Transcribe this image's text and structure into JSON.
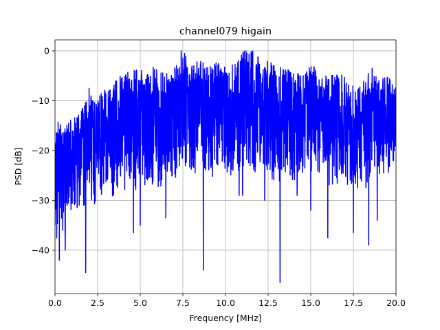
{
  "chart_data": {
    "type": "line",
    "title": "channel079 higain",
    "xlabel": "Frequency [MHz]",
    "ylabel": "PSD [dB]",
    "xlim": [
      0,
      20
    ],
    "ylim": [
      -48.7,
      2.2
    ],
    "x_ticks": [
      0,
      2.5,
      5,
      7.5,
      10,
      12.5,
      15,
      17.5,
      20
    ],
    "x_tick_labels": [
      "0.0",
      "2.5",
      "5.0",
      "7.5",
      "10.0",
      "12.5",
      "15.0",
      "17.5",
      "20.0"
    ],
    "y_ticks": [
      -40,
      -30,
      -20,
      -10,
      0
    ],
    "y_tick_labels": [
      "−40",
      "−30",
      "−20",
      "−10",
      "0"
    ],
    "grid": true,
    "line_color": "#0000ff",
    "series": [
      {
        "x": [
          0.0,
          0.5,
          1.0,
          1.5,
          2.0,
          2.5,
          3.0,
          3.5,
          4.0,
          4.5,
          5.0,
          5.5,
          6.0,
          6.5,
          7.0,
          7.5,
          8.0,
          8.5,
          9.0,
          9.5,
          10.0,
          10.5,
          11.0,
          11.5,
          12.0,
          12.5,
          13.0,
          13.5,
          14.0,
          14.5,
          15.0,
          15.5,
          16.0,
          16.5,
          17.0,
          17.5,
          18.0,
          18.5,
          19.0,
          19.5,
          20.0
        ],
        "envelope_upper": [
          -13.5,
          -15.0,
          -13.0,
          -12.0,
          -9.0,
          -9.0,
          -7.5,
          -6.0,
          -4.5,
          -3.5,
          -4.0,
          -3.0,
          -3.5,
          -4.5,
          -3.5,
          0.0,
          -2.0,
          -2.0,
          -2.5,
          -2.0,
          -3.0,
          -2.5,
          0.0,
          0.0,
          -1.5,
          -2.0,
          -3.0,
          -3.5,
          -4.0,
          -4.5,
          -2.5,
          -4.0,
          -5.0,
          -4.5,
          -5.0,
          -7.0,
          -6.5,
          -3.5,
          -6.0,
          -5.0,
          -6.5
        ],
        "envelope_lower": [
          -35.0,
          -38.0,
          -35.0,
          -31.0,
          -32.0,
          -30.0,
          -28.0,
          -30.0,
          -28.0,
          -28.0,
          -30.0,
          -27.0,
          -28.0,
          -27.0,
          -27.0,
          -26.0,
          -28.0,
          -24.0,
          -26.0,
          -25.0,
          -24.0,
          -27.0,
          -24.0,
          -25.0,
          -24.0,
          -25.0,
          -27.0,
          -26.0,
          -27.0,
          -26.0,
          -26.0,
          -25.0,
          -27.0,
          -27.0,
          -27.0,
          -28.0,
          -28.0,
          -27.0,
          -26.0,
          -25.0,
          -23.0
        ],
        "dips": [
          {
            "x": 0.1,
            "y": -37.5
          },
          {
            "x": 0.25,
            "y": -42.0
          },
          {
            "x": 0.45,
            "y": -36.0
          },
          {
            "x": 0.6,
            "y": -40.0
          },
          {
            "x": 1.3,
            "y": -31.5
          },
          {
            "x": 1.8,
            "y": -44.5
          },
          {
            "x": 2.0,
            "y": -35.0
          },
          {
            "x": 4.6,
            "y": -36.5
          },
          {
            "x": 5.0,
            "y": -35.0
          },
          {
            "x": 6.5,
            "y": -33.5
          },
          {
            "x": 8.7,
            "y": -44.0
          },
          {
            "x": 10.8,
            "y": -29.0
          },
          {
            "x": 11.0,
            "y": -29.0
          },
          {
            "x": 12.3,
            "y": -30.0
          },
          {
            "x": 13.2,
            "y": -46.5
          },
          {
            "x": 14.2,
            "y": -29.0
          },
          {
            "x": 15.0,
            "y": -32.0
          },
          {
            "x": 16.0,
            "y": -37.5
          },
          {
            "x": 17.5,
            "y": -36.5
          },
          {
            "x": 18.4,
            "y": -39.0
          },
          {
            "x": 18.9,
            "y": -34.0
          }
        ],
        "peaks": [
          {
            "x": 2.0,
            "y": -7.5
          },
          {
            "x": 7.4,
            "y": 0.0
          },
          {
            "x": 7.6,
            "y": -0.5
          },
          {
            "x": 11.2,
            "y": 0.0
          },
          {
            "x": 11.6,
            "y": 0.0
          },
          {
            "x": 18.6,
            "y": -3.5
          },
          {
            "x": 19.0,
            "y": -6.0
          }
        ]
      }
    ]
  }
}
